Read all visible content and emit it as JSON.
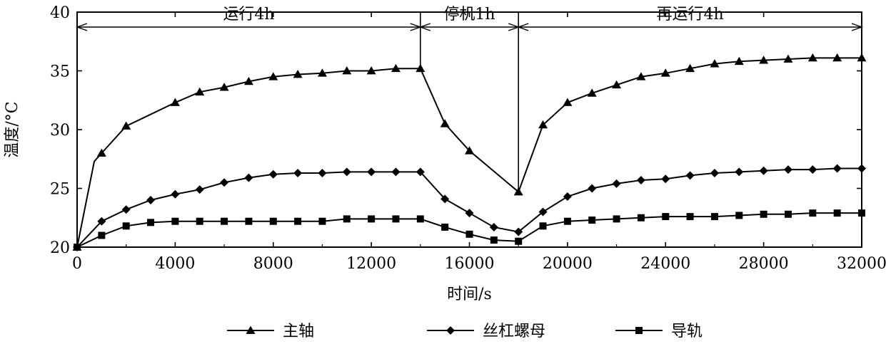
{
  "chart_data": {
    "type": "line",
    "xlabel": "时间/s",
    "ylabel": "温度/°C",
    "xlim": [
      0,
      32000
    ],
    "ylim": [
      20,
      40
    ],
    "xticks": [
      "0",
      "4000",
      "8000",
      "12000",
      "16000",
      "20000",
      "24000",
      "28000",
      "32000"
    ],
    "yticks": [
      "20",
      "25",
      "30",
      "35",
      "40"
    ],
    "grid": false,
    "legend_position": "bottom",
    "phases": [
      {
        "label": "运行4h",
        "from": 0,
        "to": 14000
      },
      {
        "label": "停机1h",
        "from": 14000,
        "to": 18000
      },
      {
        "label": "再运行4h",
        "from": 18000,
        "to": 32000
      }
    ],
    "series": [
      {
        "name": "主轴",
        "marker": "triangle",
        "x": [
          0,
          700,
          1000,
          2000,
          4000,
          5000,
          6000,
          7000,
          8000,
          9000,
          10000,
          11000,
          12000,
          13000,
          14000,
          15000,
          16000,
          18000,
          19000,
          20000,
          21000,
          22000,
          23000,
          24000,
          25000,
          26000,
          27000,
          28000,
          29000,
          30000,
          31000,
          32000
        ],
        "y": [
          20,
          27.3,
          28,
          30.3,
          32.3,
          33.2,
          33.6,
          34.1,
          34.5,
          34.7,
          34.8,
          35.0,
          35.0,
          35.2,
          35.2,
          30.5,
          28.2,
          24.7,
          30.4,
          32.3,
          33.1,
          33.8,
          34.5,
          34.8,
          35.2,
          35.6,
          35.8,
          35.9,
          36.0,
          36.1,
          36.1,
          36.1
        ]
      },
      {
        "name": "丝杠螺母",
        "marker": "diamond",
        "x": [
          0,
          1000,
          2000,
          3000,
          4000,
          5000,
          6000,
          7000,
          8000,
          9000,
          10000,
          11000,
          12000,
          13000,
          14000,
          15000,
          16000,
          17000,
          18000,
          19000,
          20000,
          21000,
          22000,
          23000,
          24000,
          25000,
          26000,
          27000,
          28000,
          29000,
          30000,
          31000,
          32000
        ],
        "y": [
          20,
          22.2,
          23.2,
          24.0,
          24.5,
          24.9,
          25.5,
          25.9,
          26.2,
          26.3,
          26.3,
          26.4,
          26.4,
          26.4,
          26.4,
          24.1,
          22.9,
          21.7,
          21.3,
          23.0,
          24.3,
          25.0,
          25.4,
          25.7,
          25.8,
          26.1,
          26.3,
          26.4,
          26.5,
          26.6,
          26.6,
          26.7,
          26.7
        ]
      },
      {
        "name": "导轨",
        "marker": "square",
        "x": [
          0,
          1000,
          2000,
          3000,
          4000,
          5000,
          6000,
          7000,
          8000,
          9000,
          10000,
          11000,
          12000,
          13000,
          14000,
          15000,
          16000,
          17000,
          18000,
          19000,
          20000,
          21000,
          22000,
          23000,
          24000,
          25000,
          26000,
          27000,
          28000,
          29000,
          30000,
          31000,
          32000
        ],
        "y": [
          20,
          21.0,
          21.8,
          22.1,
          22.2,
          22.2,
          22.2,
          22.2,
          22.2,
          22.2,
          22.2,
          22.4,
          22.4,
          22.4,
          22.4,
          21.7,
          21.1,
          20.6,
          20.5,
          21.8,
          22.2,
          22.3,
          22.4,
          22.5,
          22.6,
          22.6,
          22.6,
          22.7,
          22.8,
          22.8,
          22.9,
          22.9,
          22.9
        ]
      }
    ]
  }
}
